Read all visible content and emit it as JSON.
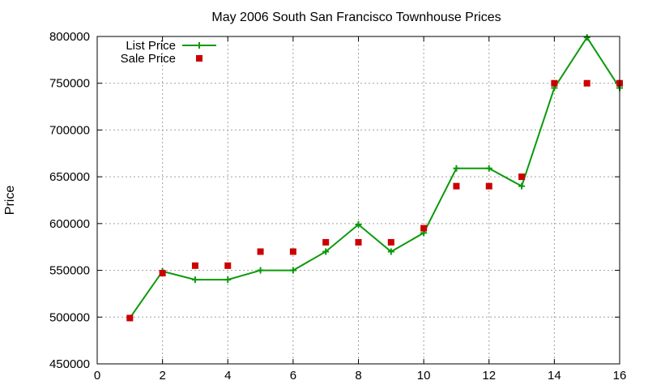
{
  "chart_data": {
    "type": "line",
    "title": "May 2006 South San Francisco Townhouse Prices",
    "xlabel": "",
    "ylabel": "Price",
    "xlim": [
      0,
      16
    ],
    "ylim": [
      450000,
      800000
    ],
    "xticks": [
      0,
      2,
      4,
      6,
      8,
      10,
      12,
      14,
      16
    ],
    "yticks": [
      450000,
      500000,
      550000,
      600000,
      650000,
      700000,
      750000,
      800000
    ],
    "grid": true,
    "legend_position": "top-left",
    "series": [
      {
        "name": "List Price",
        "style": "line-with-plus-markers",
        "color": "#0a9a0a",
        "x": [
          1,
          2,
          3,
          4,
          5,
          6,
          7,
          8,
          9,
          10,
          11,
          12,
          13,
          14,
          15,
          16
        ],
        "values": [
          499000,
          549000,
          540000,
          540000,
          550000,
          550000,
          570000,
          599000,
          570000,
          590000,
          659000,
          659000,
          640000,
          745000,
          799000,
          745000
        ]
      },
      {
        "name": "Sale Price",
        "style": "square-markers",
        "color": "#cc0000",
        "x": [
          1,
          2,
          3,
          4,
          5,
          6,
          7,
          8,
          9,
          10,
          11,
          12,
          13,
          14,
          15,
          16
        ],
        "values": [
          499000,
          547000,
          555000,
          555000,
          570000,
          570000,
          580000,
          580000,
          580000,
          595000,
          640000,
          640000,
          650000,
          750000,
          750000,
          750000
        ]
      }
    ]
  }
}
